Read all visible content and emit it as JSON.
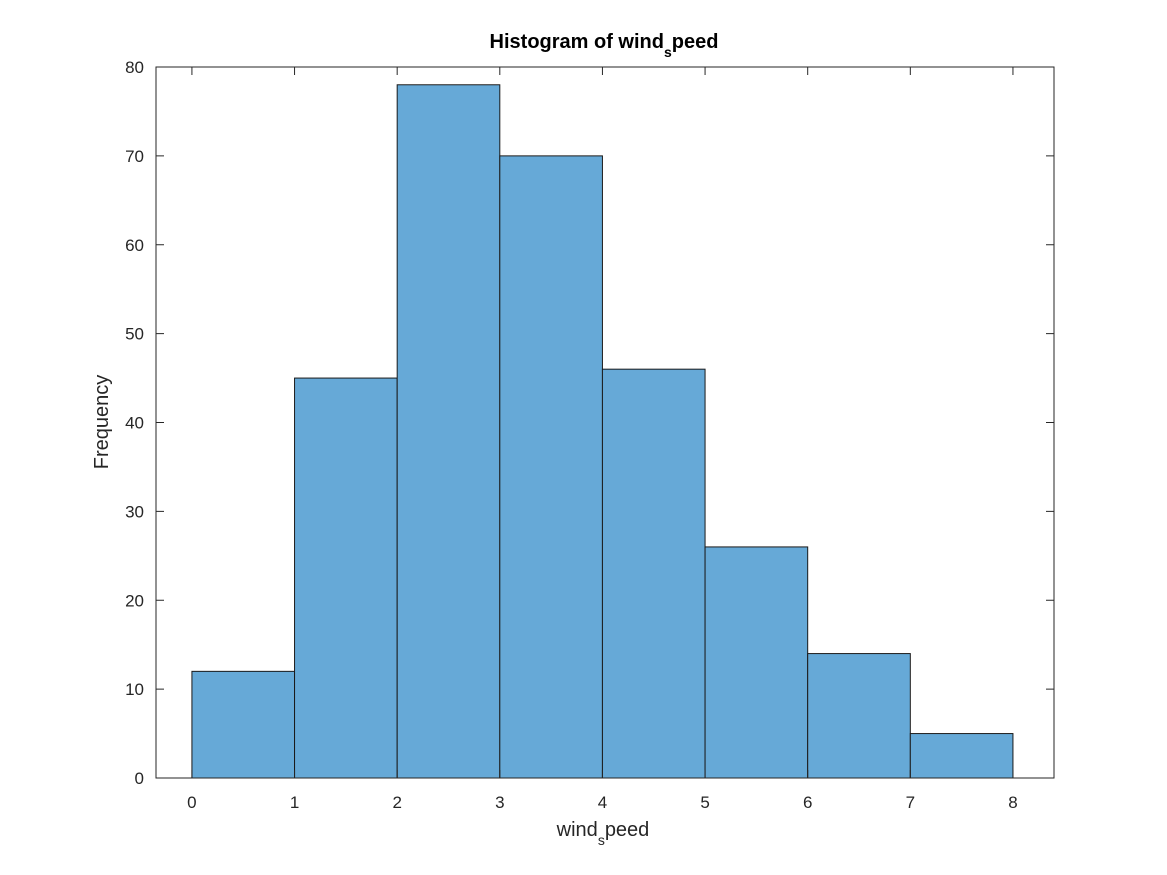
{
  "chart_data": {
    "type": "bar",
    "histogram": true,
    "title": "Histogram of wind_speed",
    "title_parts": {
      "main": "Histogram of wind",
      "subscript": "s",
      "rest": "peed"
    },
    "xlabel": "wind_speed",
    "xlabel_parts": {
      "main": "wind",
      "subscript": "s",
      "rest": "peed"
    },
    "ylabel": "Frequency",
    "bin_edges": [
      0,
      1,
      2,
      3,
      4,
      5,
      6,
      7,
      8
    ],
    "values": [
      12,
      45,
      78,
      70,
      46,
      26,
      14,
      5
    ],
    "xlim": [
      -0.35,
      8.4
    ],
    "ylim": [
      0,
      80
    ],
    "xticks": [
      "0",
      "1",
      "2",
      "3",
      "4",
      "5",
      "6",
      "7",
      "8"
    ],
    "yticks": [
      "0",
      "10",
      "20",
      "30",
      "40",
      "50",
      "60",
      "70",
      "80"
    ],
    "grid": false,
    "box": true,
    "colors": {
      "bar_fill": "#66a9d7",
      "bar_edge": "#1a1a1a",
      "axis": "#262626"
    }
  }
}
